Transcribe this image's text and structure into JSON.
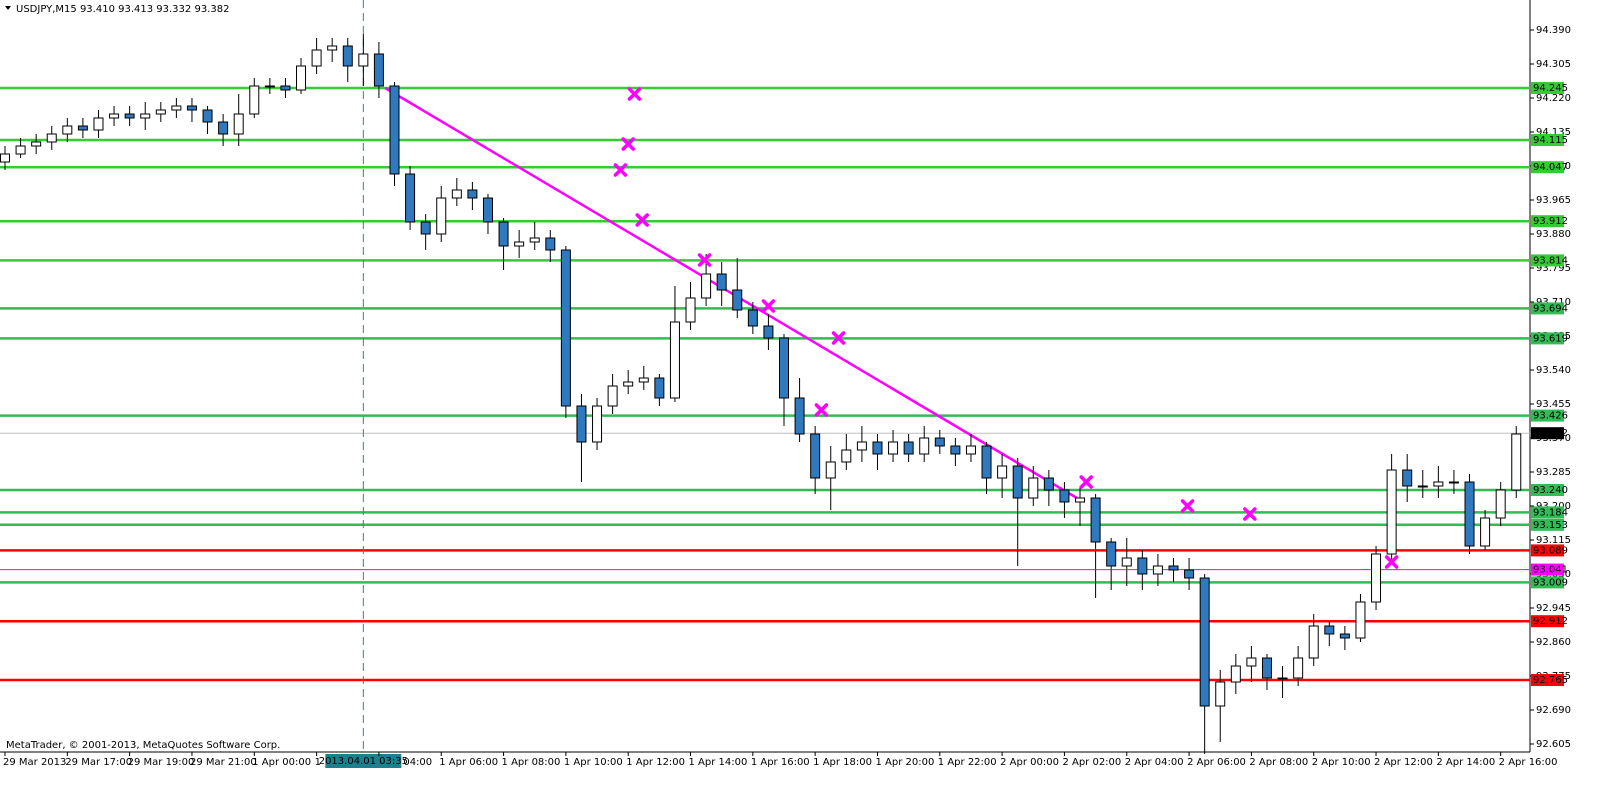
{
  "chart_data": {
    "type": "candlestick",
    "title": "USDJPY,M15  93.410 93.413 93.332 93.382",
    "footer": "MetaTrader, © 2001-2013, MetaQuotes Software Corp.",
    "crosshair_label": "2013.04.01 03:35",
    "crosshair_x": 23,
    "categories": [
      "29 Mar 2013",
      null,
      null,
      null,
      "29 Mar 17:00",
      null,
      null,
      null,
      "29 Mar 19:00",
      null,
      null,
      null,
      "29 Mar 21:00",
      null,
      null,
      null,
      "1 Apr 00:00",
      null,
      null,
      null,
      "1",
      null,
      null,
      null,
      "04:00",
      null,
      null,
      null,
      "1 Apr 06:00",
      null,
      null,
      null,
      "1 Apr 08:00",
      null,
      null,
      null,
      "1 Apr 10:00",
      null,
      null,
      null,
      "1 Apr 12:00",
      null,
      null,
      null,
      "1 Apr 14:00",
      null,
      null,
      null,
      "1 Apr 16:00",
      null,
      null,
      null,
      "1 Apr 18:00",
      null,
      null,
      null,
      "1 Apr 20:00",
      null,
      null,
      null,
      "1 Apr 22:00",
      null,
      null,
      null,
      "2 Apr 00:00",
      null,
      null,
      null,
      "2 Apr 02:00",
      null,
      null,
      null,
      "2 Apr 04:00",
      null,
      null,
      null,
      "2 Apr 06:00",
      null,
      null,
      null,
      "2 Apr 08:00",
      null,
      null,
      null,
      "2 Apr 10:00",
      null,
      null,
      null,
      "2 Apr 12:00",
      null,
      null,
      null,
      "2 Apr 14:00",
      null,
      null,
      null,
      "2 Apr 16:00",
      null
    ],
    "open": [
      94.06,
      94.08,
      94.1,
      94.11,
      94.13,
      94.15,
      94.14,
      94.17,
      94.18,
      94.17,
      94.18,
      94.19,
      94.2,
      94.19,
      94.16,
      94.13,
      94.18,
      94.25,
      94.25,
      94.24,
      94.3,
      94.34,
      94.35,
      94.3,
      94.33,
      94.25,
      94.03,
      93.91,
      93.88,
      93.97,
      93.99,
      93.97,
      93.91,
      93.85,
      93.86,
      93.87,
      93.84,
      93.45,
      93.36,
      93.45,
      93.5,
      93.51,
      93.52,
      93.47,
      93.66,
      93.72,
      93.78,
      93.74,
      93.69,
      93.65,
      93.62,
      93.47,
      93.38,
      93.27,
      93.31,
      93.34,
      93.36,
      93.33,
      93.36,
      93.33,
      93.37,
      93.35,
      93.33,
      93.35,
      93.27,
      93.3,
      93.22,
      93.27,
      93.24,
      93.21,
      93.22,
      93.11,
      93.05,
      93.07,
      93.03,
      93.05,
      93.04,
      93.02,
      92.7,
      92.76,
      92.8,
      92.82,
      92.77,
      92.77,
      92.82,
      92.9,
      92.88,
      92.87,
      92.96,
      93.08,
      93.29,
      93.25,
      93.25,
      93.26,
      93.26,
      93.1,
      93.17,
      93.24
    ],
    "high": [
      94.1,
      94.12,
      94.13,
      94.15,
      94.17,
      94.17,
      94.19,
      94.2,
      94.2,
      94.21,
      94.21,
      94.22,
      94.22,
      94.2,
      94.18,
      94.23,
      94.27,
      94.27,
      94.27,
      94.32,
      94.37,
      94.37,
      94.37,
      94.38,
      94.36,
      94.26,
      94.05,
      93.93,
      94.0,
      94.02,
      94.01,
      93.98,
      93.92,
      93.89,
      93.91,
      93.89,
      93.85,
      93.48,
      93.47,
      93.53,
      93.54,
      93.55,
      93.53,
      93.75,
      93.76,
      93.83,
      93.81,
      93.82,
      93.71,
      93.68,
      93.63,
      93.52,
      93.4,
      93.35,
      93.38,
      93.4,
      93.38,
      93.39,
      93.38,
      93.4,
      93.39,
      93.37,
      93.38,
      93.36,
      93.33,
      93.32,
      93.3,
      93.29,
      93.26,
      93.25,
      93.23,
      93.12,
      93.12,
      93.09,
      93.08,
      93.07,
      93.07,
      93.03,
      92.79,
      92.83,
      92.85,
      92.83,
      92.8,
      92.85,
      92.93,
      92.91,
      92.9,
      92.98,
      93.1,
      93.33,
      93.33,
      93.29,
      93.3,
      93.29,
      93.28,
      93.19,
      93.26,
      93.4
    ],
    "low": [
      94.04,
      94.07,
      94.08,
      94.09,
      94.11,
      94.12,
      94.12,
      94.15,
      94.15,
      94.14,
      94.16,
      94.17,
      94.16,
      94.13,
      94.1,
      94.1,
      94.17,
      94.23,
      94.22,
      94.23,
      94.28,
      94.31,
      94.26,
      94.25,
      94.22,
      94.0,
      93.89,
      93.84,
      93.86,
      93.95,
      93.94,
      93.88,
      93.79,
      93.82,
      93.84,
      93.81,
      93.42,
      93.26,
      93.34,
      93.43,
      93.48,
      93.49,
      93.45,
      93.46,
      93.64,
      93.7,
      93.7,
      93.67,
      93.63,
      93.59,
      93.4,
      93.36,
      93.23,
      93.19,
      93.29,
      93.31,
      93.29,
      93.31,
      93.31,
      93.31,
      93.33,
      93.3,
      93.31,
      93.23,
      93.22,
      93.05,
      93.2,
      93.2,
      93.17,
      93.15,
      92.97,
      92.99,
      93.0,
      92.99,
      93.0,
      93.01,
      92.99,
      92.58,
      92.61,
      92.73,
      92.76,
      92.74,
      92.72,
      92.75,
      92.8,
      92.85,
      92.84,
      92.86,
      92.94,
      93.06,
      93.21,
      93.22,
      93.22,
      93.23,
      93.08,
      93.09,
      93.15,
      93.22
    ],
    "close": [
      94.08,
      94.1,
      94.11,
      94.13,
      94.15,
      94.14,
      94.17,
      94.18,
      94.17,
      94.18,
      94.19,
      94.2,
      94.19,
      94.16,
      94.13,
      94.18,
      94.25,
      94.25,
      94.24,
      94.3,
      94.34,
      94.35,
      94.3,
      94.33,
      94.25,
      94.03,
      93.91,
      93.88,
      93.97,
      93.99,
      93.97,
      93.91,
      93.85,
      93.86,
      93.87,
      93.84,
      93.45,
      93.36,
      93.45,
      93.5,
      93.51,
      93.52,
      93.47,
      93.66,
      93.72,
      93.78,
      93.74,
      93.69,
      93.65,
      93.62,
      93.47,
      93.38,
      93.27,
      93.31,
      93.34,
      93.36,
      93.33,
      93.36,
      93.33,
      93.37,
      93.35,
      93.33,
      93.35,
      93.27,
      93.3,
      93.22,
      93.27,
      93.24,
      93.21,
      93.22,
      93.11,
      93.05,
      93.07,
      93.03,
      93.05,
      93.04,
      93.02,
      92.7,
      92.76,
      92.8,
      92.82,
      92.77,
      92.77,
      92.82,
      92.9,
      92.88,
      92.87,
      92.96,
      93.08,
      93.29,
      93.25,
      93.25,
      93.26,
      93.26,
      93.1,
      93.17,
      93.24,
      93.38
    ],
    "up_color": "#ffffff",
    "down_color": "#2f79bf",
    "ylim": [
      92.585,
      94.465
    ],
    "yticks": [
      {
        "value": 94.39,
        "label": "94.390"
      },
      94.305,
      {
        "value": 94.22,
        "label": "94.220"
      },
      94.135,
      {
        "value": 94.05,
        "label": "94.050"
      },
      93.965,
      {
        "value": 93.88,
        "label": "93.880"
      },
      93.795,
      {
        "value": 93.71,
        "label": "93.710"
      },
      93.625,
      {
        "value": 93.54,
        "label": "93.540"
      },
      93.455,
      {
        "value": 93.37,
        "label": "93.370"
      },
      93.285,
      {
        "value": 93.2,
        "label": "93.200"
      },
      93.115,
      {
        "value": 93.03,
        "label": "93.030"
      },
      92.945,
      {
        "value": 92.86,
        "label": "92.860"
      },
      92.775,
      {
        "value": 92.69,
        "label": "92.690"
      },
      92.605
    ],
    "levels": [
      94.245,
      94.115,
      94.047,
      93.912,
      93.814,
      93.694,
      93.619,
      93.426,
      {
        "value": 93.24,
        "label": "93.240"
      },
      93.184,
      93.153,
      93.089,
      93.041,
      93.009,
      92.912,
      92.765,
      93.382
    ],
    "level_colors": [
      "#33cc33",
      "#33cc33",
      "#33cc33",
      "#33cc33",
      "#33cc33",
      "#33bb55",
      "#33bb55",
      "#33bb55",
      "#33bb55",
      "#33bb55",
      "#33bb55",
      "#ff0000",
      "#ff00ff",
      "#33bb55",
      "#ff0000",
      "#ff0000",
      "#000000"
    ],
    "level_line_colors": [
      "#33cc33",
      "#33cc33",
      "#33cc33",
      "#33cc33",
      "#33cc33",
      "#33bb55",
      "#33bb55",
      "#33bb55",
      "#33bb55",
      "#33bb55",
      "#33bb55",
      "#ff0000",
      "#ff00ff",
      "#33bb55",
      "#ff0000",
      "#ff0000",
      "#c0c0c0"
    ],
    "level_widths": [
      2.5,
      2.5,
      2.5,
      2.5,
      2.5,
      2.5,
      2.5,
      2.5,
      2.5,
      2.5,
      2.5,
      2.5,
      1,
      2.5,
      2.5,
      2.5,
      1
    ],
    "trendline": {
      "x": [
        24.4,
        68.8
      ],
      "y": [
        94.245,
        93.22
      ],
      "color": "#ff00ff"
    },
    "markers": {
      "x": [
        40.4,
        40.0,
        39.5,
        40.9,
        44.9,
        49.0,
        53.5,
        52.4,
        69.4,
        75.9,
        79.9,
        89.0
      ],
      "y": [
        94.23,
        94.105,
        94.04,
        93.915,
        93.815,
        93.7,
        93.62,
        93.44,
        93.26,
        93.2,
        93.18,
        93.06
      ],
      "color": "#ff00ff"
    }
  }
}
